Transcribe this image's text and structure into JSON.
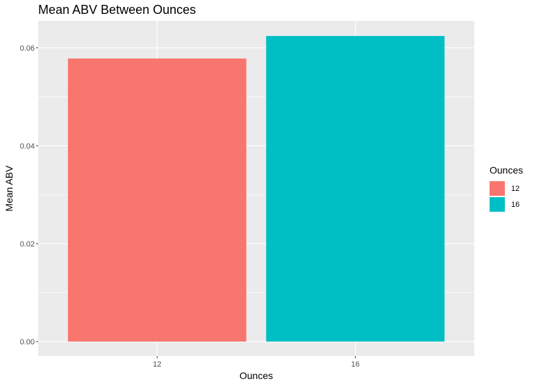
{
  "chart_data": {
    "type": "bar",
    "title": "Mean ABV Between Ounces",
    "xlabel": "Ounces",
    "ylabel": "Mean ABV",
    "categories": [
      "12",
      "16"
    ],
    "values": [
      0.0578,
      0.0624
    ],
    "colors": [
      "#F8766D",
      "#00BFC4"
    ],
    "ylim": [
      0,
      0.0655
    ],
    "yticks": [
      0,
      0.02,
      0.04,
      0.06
    ],
    "ytick_labels": [
      "0.00",
      "0.02",
      "0.04",
      "0.06"
    ],
    "grid": true,
    "legend": {
      "title": "Ounces",
      "placement": "right",
      "entries": [
        {
          "label": "12",
          "color": "#F8766D"
        },
        {
          "label": "16",
          "color": "#00BFC4"
        }
      ]
    },
    "panel_background": "#EBEBEB",
    "grid_color": "#FFFFFF"
  }
}
